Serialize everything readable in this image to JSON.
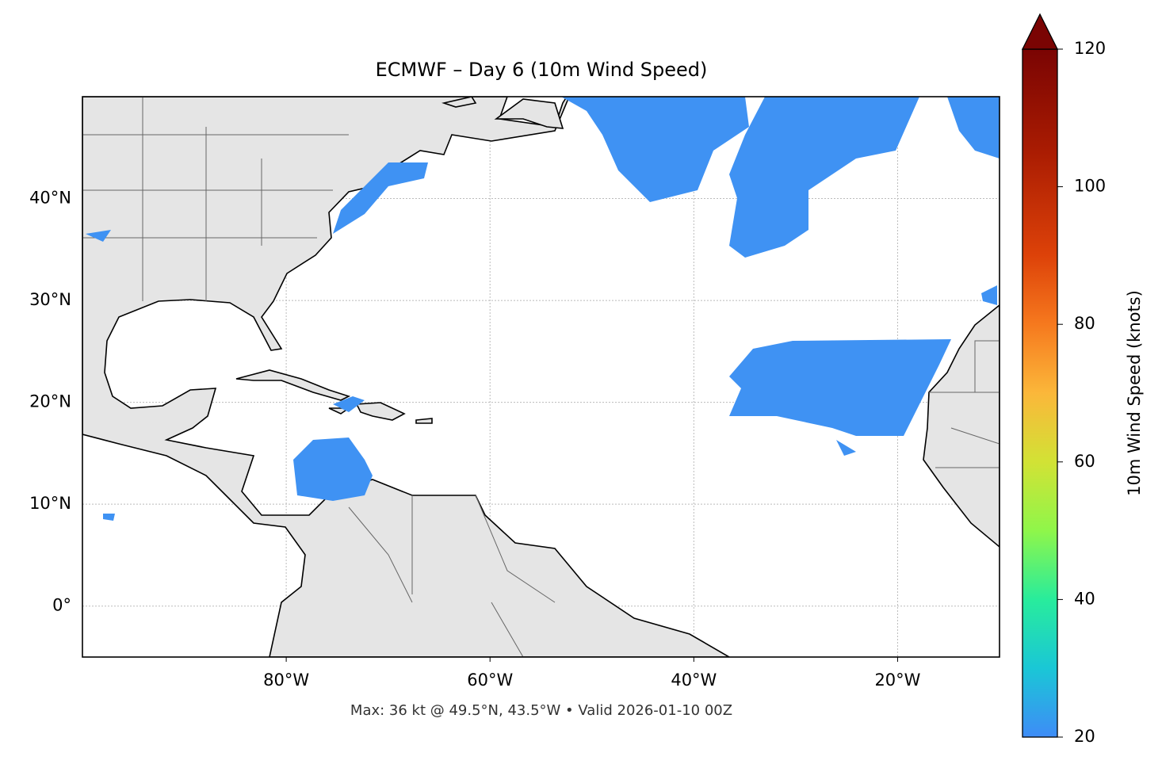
{
  "map": {
    "title": "ECMWF – Day 6 (10m Wind Speed)",
    "footer": "Max: 36 kt @ 49.5°N, 43.5°W • Valid 2026-01-10 00Z",
    "xlim": [
      -100,
      -10
    ],
    "ylim": [
      -5,
      50
    ],
    "xticks": [
      {
        "value": -80,
        "label": "80°W"
      },
      {
        "value": -60,
        "label": "60°W"
      },
      {
        "value": -40,
        "label": "40°W"
      },
      {
        "value": -20,
        "label": "20°W"
      }
    ],
    "yticks": [
      {
        "value": 0,
        "label": "0°"
      },
      {
        "value": 10,
        "label": "10°N"
      },
      {
        "value": 20,
        "label": "20°N"
      },
      {
        "value": 30,
        "label": "30°N"
      },
      {
        "value": 40,
        "label": "40°N"
      }
    ],
    "grid": true,
    "colorbar": {
      "label": "10m Wind Speed (knots)",
      "lim": [
        20,
        120
      ],
      "ticks": [
        20,
        40,
        60,
        80,
        100,
        120
      ]
    }
  }
}
